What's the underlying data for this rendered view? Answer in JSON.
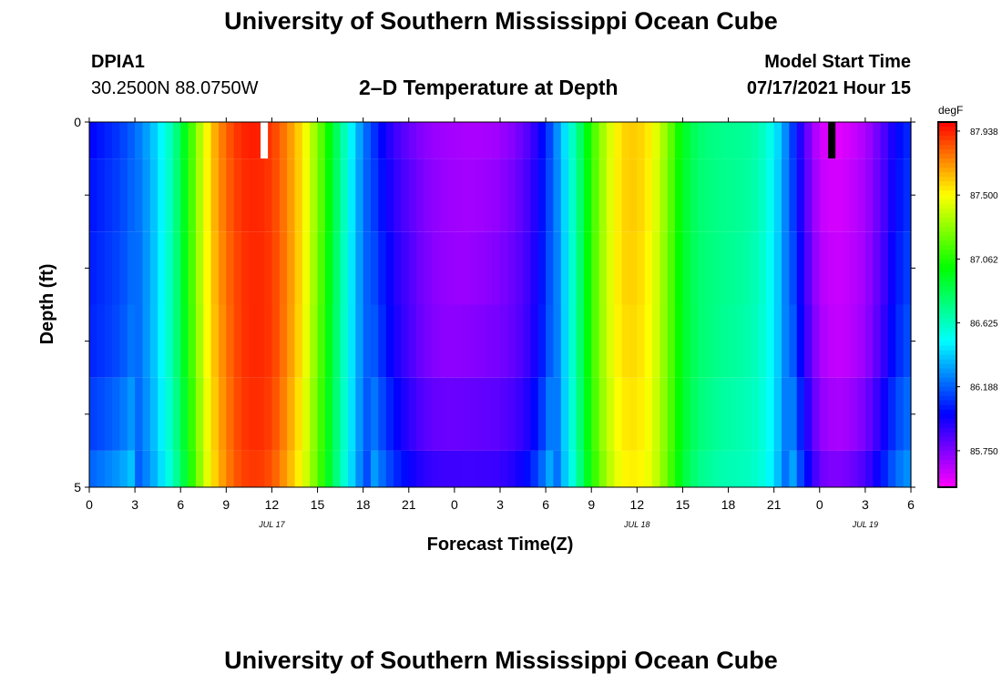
{
  "title": "University of Southern Mississippi Ocean Cube",
  "footer_title": "University of Southern Mississippi Ocean Cube",
  "station": {
    "id": "DPIA1",
    "location": "30.2500N  88.0750W"
  },
  "subtitle": "2–D Temperature at Depth",
  "model": {
    "label": "Model Start Time",
    "value": "07/17/2021 Hour 15"
  },
  "chart_data": {
    "type": "heatmap",
    "xlabel": "Forecast Time(Z)",
    "ylabel": "Depth (ft)",
    "x_tick_labels": [
      "0",
      "3",
      "6",
      "9",
      "12",
      "15",
      "18",
      "21",
      "0",
      "3",
      "6",
      "9",
      "12",
      "15",
      "18",
      "21",
      "0",
      "3",
      "6"
    ],
    "x_tick_hours": [
      0,
      3,
      6,
      9,
      12,
      15,
      18,
      21,
      24,
      27,
      30,
      33,
      36,
      39,
      42,
      45,
      48,
      51,
      54
    ],
    "x_range_hours": [
      0,
      54
    ],
    "date_labels": [
      {
        "text": "JUL 17",
        "hour": 12
      },
      {
        "text": "JUL 18",
        "hour": 36
      },
      {
        "text": "JUL 19",
        "hour": 51
      }
    ],
    "y_tick_labels": [
      "0",
      "5"
    ],
    "y_range": [
      0,
      5
    ],
    "colorbar": {
      "unit": "degF",
      "tick_labels": [
        "87.938",
        "87.500",
        "87.062",
        "86.625",
        "86.188",
        "85.750"
      ],
      "tick_values": [
        87.938,
        87.5,
        87.062,
        86.625,
        86.188,
        85.75
      ],
      "range": [
        85.5,
        88.0
      ]
    },
    "markers": [
      {
        "hour": 11.5,
        "color": "#ffffff"
      },
      {
        "hour": 48.8,
        "color": "#000000"
      }
    ],
    "depth_rows": [
      0,
      1,
      2,
      3,
      4,
      5
    ],
    "profile_hours": [
      0,
      1,
      2,
      3,
      4,
      5,
      6,
      7,
      8,
      9,
      10,
      11,
      12,
      13,
      14,
      15,
      16,
      17,
      18,
      19,
      20,
      21,
      22,
      23,
      24,
      25,
      26,
      27,
      28,
      29,
      30,
      31,
      32,
      33,
      34,
      35,
      36,
      37,
      38,
      39,
      40,
      41,
      42,
      43,
      44,
      45,
      46,
      47,
      48,
      49,
      50,
      51,
      52,
      53,
      54
    ],
    "profile_values": [
      86.0,
      86.05,
      86.1,
      86.2,
      86.35,
      86.55,
      86.85,
      87.25,
      87.6,
      87.8,
      87.92,
      87.95,
      87.9,
      87.75,
      87.55,
      87.25,
      86.9,
      86.55,
      86.25,
      86.05,
      85.9,
      85.8,
      85.72,
      85.68,
      85.67,
      85.67,
      85.68,
      85.7,
      85.75,
      85.85,
      86.05,
      86.35,
      86.7,
      87.1,
      87.4,
      87.58,
      87.6,
      87.5,
      87.25,
      86.95,
      86.8,
      86.75,
      86.72,
      86.7,
      86.65,
      86.5,
      86.2,
      85.85,
      85.6,
      85.55,
      85.58,
      85.65,
      85.8,
      86.0,
      86.1
    ],
    "depth_offsets": [
      0,
      0.02,
      0.04,
      0.06,
      0.12,
      0.2
    ]
  }
}
